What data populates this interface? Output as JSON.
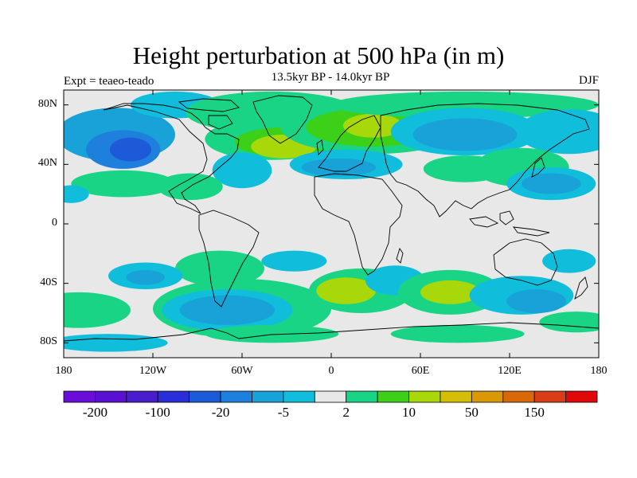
{
  "title": "Height perturbation at 500 hPa (in m)",
  "subtitle": "13.5kyr BP - 14.0kyr BP",
  "left_label": "Expt = teaeo-teado",
  "right_label": "DJF",
  "lat_ticks": [
    {
      "label": "80N",
      "lat": 80
    },
    {
      "label": "40N",
      "lat": 40
    },
    {
      "label": "0",
      "lat": 0
    },
    {
      "label": "40S",
      "lat": -40
    },
    {
      "label": "80S",
      "lat": -80
    }
  ],
  "lon_ticks": [
    {
      "label": "180",
      "lon": -180
    },
    {
      "label": "120W",
      "lon": -120
    },
    {
      "label": "60W",
      "lon": -60
    },
    {
      "label": "0",
      "lon": 0
    },
    {
      "label": "60E",
      "lon": 60
    },
    {
      "label": "120E",
      "lon": 120
    },
    {
      "label": "180",
      "lon": 180
    }
  ],
  "colorbar": {
    "colors": [
      "#6a0dd8",
      "#5a10d0",
      "#4a1ccc",
      "#2a2ed6",
      "#1d5ad8",
      "#1e80dc",
      "#18a2d8",
      "#10bedc",
      "#e8e8e8",
      "#18d484",
      "#3cd018",
      "#a8d80a",
      "#d4be08",
      "#d89808",
      "#d86808",
      "#d83c18",
      "#e00808"
    ],
    "labels": [
      {
        "text": "-200",
        "index": 1
      },
      {
        "text": "-100",
        "index": 3
      },
      {
        "text": "-20",
        "index": 5
      },
      {
        "text": "-5",
        "index": 7
      },
      {
        "text": "2",
        "index": 9
      },
      {
        "text": "10",
        "index": 11
      },
      {
        "text": "50",
        "index": 13
      },
      {
        "text": "150",
        "index": 15
      }
    ]
  },
  "field_colors": {
    "neg1": "#1d5ad8",
    "neg2": "#1e80dc",
    "neg3": "#18a2d8",
    "neg4": "#10bedc",
    "neutral": "#e8e8e8",
    "pos1": "#18d484",
    "pos2": "#3cd018",
    "pos3": "#a8d80a",
    "pos4": "#d4be08"
  },
  "chart_data": {
    "type": "heatmap",
    "title": "Height perturbation at 500 hPa (in m)",
    "subtitle": "13.5kyr BP - 14.0kyr BP",
    "season": "DJF",
    "experiment": "Expt = teaeo-teado",
    "xlim": [
      -180,
      180
    ],
    "ylim": [
      -90,
      90
    ],
    "blobs": [
      {
        "lon": -145,
        "lat": 60,
        "rx": 40,
        "ry": 18,
        "v": -2
      },
      {
        "lon": -140,
        "lat": 50,
        "rx": 25,
        "ry": 13,
        "v": -3
      },
      {
        "lon": -135,
        "lat": 50,
        "rx": 14,
        "ry": 8,
        "v": -4
      },
      {
        "lon": -105,
        "lat": 80,
        "rx": 30,
        "ry": 9,
        "v": -1
      },
      {
        "lon": -40,
        "lat": 75,
        "rx": 58,
        "ry": 14,
        "v": 1
      },
      {
        "lon": -40,
        "lat": 57,
        "rx": 45,
        "ry": 14,
        "v": 1
      },
      {
        "lon": -30,
        "lat": 55,
        "rx": 35,
        "ry": 10,
        "v": 2
      },
      {
        "lon": -32,
        "lat": 52,
        "rx": 22,
        "ry": 8,
        "v": 3
      },
      {
        "lon": 28,
        "lat": 65,
        "rx": 62,
        "ry": 18,
        "v": 1
      },
      {
        "lon": 28,
        "lat": 65,
        "rx": 45,
        "ry": 13,
        "v": 2
      },
      {
        "lon": 28,
        "lat": 66,
        "rx": 20,
        "ry": 8,
        "v": 3
      },
      {
        "lon": 10,
        "lat": 40,
        "rx": 38,
        "ry": 10,
        "v": -1
      },
      {
        "lon": 5,
        "lat": 38,
        "rx": 25,
        "ry": 6,
        "v": -2
      },
      {
        "lon": -60,
        "lat": 36,
        "rx": 20,
        "ry": 12,
        "v": -1
      },
      {
        "lon": -140,
        "lat": 27,
        "rx": 35,
        "ry": 9,
        "v": 1
      },
      {
        "lon": -95,
        "lat": 25,
        "rx": 22,
        "ry": 9,
        "v": 1
      },
      {
        "lon": 90,
        "lat": 80,
        "rx": 90,
        "ry": 9,
        "v": 1
      },
      {
        "lon": 90,
        "lat": 62,
        "rx": 50,
        "ry": 16,
        "v": -1
      },
      {
        "lon": 90,
        "lat": 60,
        "rx": 35,
        "ry": 11,
        "v": -2
      },
      {
        "lon": 160,
        "lat": 62,
        "rx": 35,
        "ry": 15,
        "v": -1
      },
      {
        "lon": 90,
        "lat": 37,
        "rx": 28,
        "ry": 9,
        "v": 1
      },
      {
        "lon": 128,
        "lat": 38,
        "rx": 32,
        "ry": 13,
        "v": 1
      },
      {
        "lon": 148,
        "lat": 27,
        "rx": 30,
        "ry": 11,
        "v": -1
      },
      {
        "lon": 148,
        "lat": 27,
        "rx": 20,
        "ry": 7,
        "v": -2
      },
      {
        "lon": -175,
        "lat": 20,
        "rx": 12,
        "ry": 6,
        "v": -1
      },
      {
        "lon": -75,
        "lat": -30,
        "rx": 30,
        "ry": 12,
        "v": 1
      },
      {
        "lon": -125,
        "lat": -35,
        "rx": 25,
        "ry": 9,
        "v": -1
      },
      {
        "lon": -125,
        "lat": -36,
        "rx": 13,
        "ry": 5,
        "v": -2
      },
      {
        "lon": -25,
        "lat": -25,
        "rx": 22,
        "ry": 7,
        "v": -1
      },
      {
        "lon": -60,
        "lat": -57,
        "rx": 60,
        "ry": 20,
        "v": 1
      },
      {
        "lon": -70,
        "lat": -58,
        "rx": 44,
        "ry": 14,
        "v": -1
      },
      {
        "lon": -70,
        "lat": -58,
        "rx": 32,
        "ry": 10,
        "v": -2
      },
      {
        "lon": -170,
        "lat": -58,
        "rx": 35,
        "ry": 12,
        "v": 1
      },
      {
        "lon": 20,
        "lat": -45,
        "rx": 35,
        "ry": 15,
        "v": 1
      },
      {
        "lon": 10,
        "lat": -45,
        "rx": 20,
        "ry": 9,
        "v": 3
      },
      {
        "lon": 43,
        "lat": -38,
        "rx": 20,
        "ry": 10,
        "v": -1
      },
      {
        "lon": 80,
        "lat": -46,
        "rx": 35,
        "ry": 15,
        "v": 1
      },
      {
        "lon": 80,
        "lat": -46,
        "rx": 20,
        "ry": 8,
        "v": 3
      },
      {
        "lon": 128,
        "lat": -48,
        "rx": 35,
        "ry": 13,
        "v": -1
      },
      {
        "lon": 138,
        "lat": -52,
        "rx": 20,
        "ry": 8,
        "v": -2
      },
      {
        "lon": 160,
        "lat": -25,
        "rx": 18,
        "ry": 8,
        "v": -1
      },
      {
        "lon": 165,
        "lat": -66,
        "rx": 25,
        "ry": 7,
        "v": 1
      },
      {
        "lon": -150,
        "lat": -80,
        "rx": 40,
        "ry": 6,
        "v": -1
      },
      {
        "lon": -40,
        "lat": -74,
        "rx": 45,
        "ry": 6,
        "v": 1
      },
      {
        "lon": 85,
        "lat": -74,
        "rx": 45,
        "ry": 6,
        "v": 1
      }
    ]
  }
}
